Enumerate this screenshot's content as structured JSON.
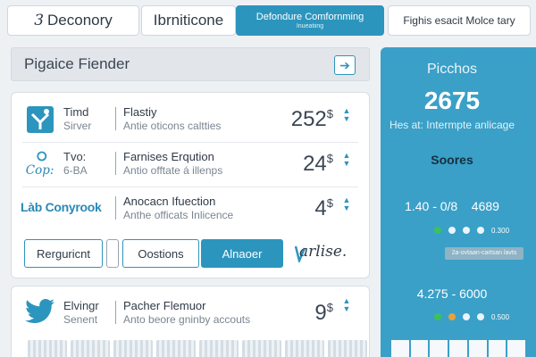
{
  "tabs": [
    {
      "num": "3",
      "label": "Deconory"
    },
    {
      "label": "Ibrniticone"
    },
    {
      "label": "Defondure Comfornming",
      "sub": "Inueatiing"
    },
    {
      "label": "Fighis esacit Molce tary"
    }
  ],
  "header": {
    "title": "Pigaice Fiender"
  },
  "rows": [
    {
      "label_a": "Timd",
      "label_b": "Sirver",
      "name": "Flastiy",
      "desc": "Antie oticons caltties",
      "price": "252",
      "currency": "$"
    },
    {
      "logo": "Cop:",
      "label_a": "Tvo:",
      "label_b": "6‑BA",
      "name": "Farnises Erqution",
      "desc": "Antio offtate á illenps",
      "price": "24",
      "currency": "$"
    },
    {
      "logo": "Làb Conyrook",
      "name": "Anocacn Ifuection",
      "desc": "Anthe officats Inlicence",
      "price": "4",
      "currency": "$"
    }
  ],
  "actions": {
    "outline_a": "Rerguricnt",
    "outline_b": "Oostions",
    "primary": "Alnaoer",
    "brand": "arlise."
  },
  "second_row": {
    "label_a": "Elvingr",
    "label_b": "Senent",
    "name": "Pacher Flemuor",
    "desc": "Anto beore gninby accouts",
    "price": "9",
    "currency": "$"
  },
  "stats": {
    "title": "Picchos",
    "big": "2675",
    "sub": "Hes at: Intermpte anlicage",
    "section": "Soores",
    "range1": "1.40 - 0/8",
    "range1_value": "4689",
    "legend1": [
      "",
      "",
      "0.300"
    ],
    "pill": "2a-ovtaan-cartsan lavts",
    "range2": "4.275 - 6000",
    "legend2": [
      "",
      "",
      "0.500"
    ]
  },
  "colors": {
    "accent": "#2c95bd",
    "panel": "#3aa0c8",
    "green": "#3cc25a",
    "orange": "#e8a23a"
  }
}
